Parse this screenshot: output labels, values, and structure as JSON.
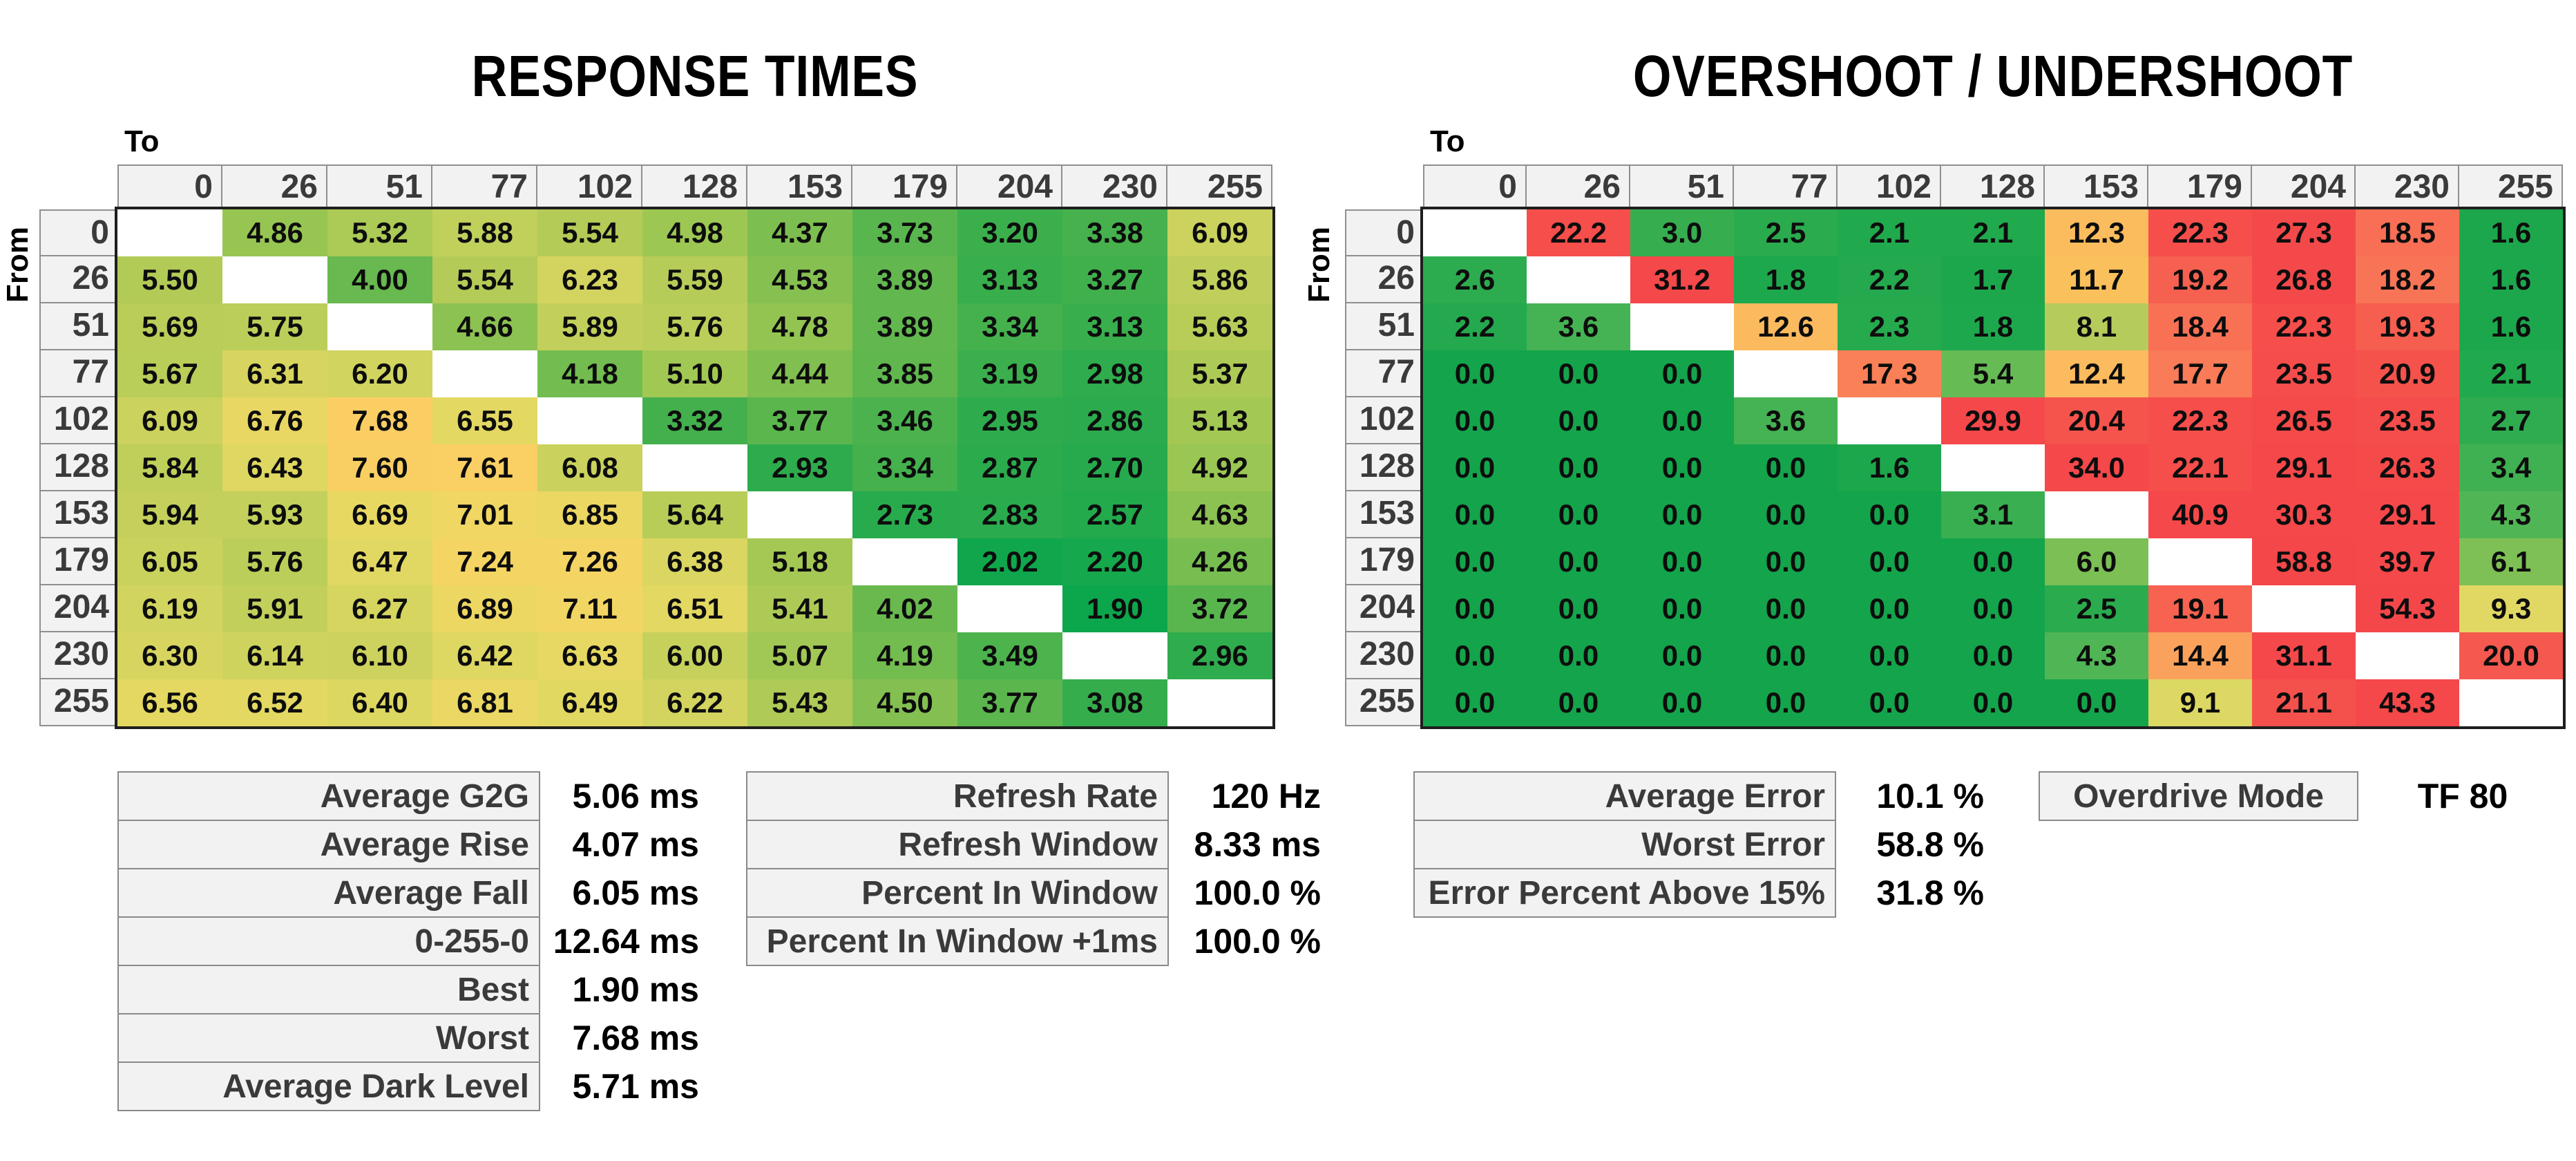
{
  "chart_data": [
    {
      "type": "heatmap",
      "name": "response-times",
      "title": "RESPONSE TIMES",
      "xlabel": "To",
      "ylabel": "From",
      "unit": "ms",
      "decimals": 2,
      "categories": [
        "0",
        "26",
        "51",
        "77",
        "102",
        "128",
        "153",
        "179",
        "204",
        "230",
        "255"
      ],
      "rows": [
        [
          null,
          4.86,
          5.32,
          5.88,
          5.54,
          4.98,
          4.37,
          3.73,
          3.2,
          3.38,
          6.09
        ],
        [
          5.5,
          null,
          4.0,
          5.54,
          6.23,
          5.59,
          4.53,
          3.89,
          3.13,
          3.27,
          5.86
        ],
        [
          5.69,
          5.75,
          null,
          4.66,
          5.89,
          5.76,
          4.78,
          3.89,
          3.34,
          3.13,
          5.63
        ],
        [
          5.67,
          6.31,
          6.2,
          null,
          4.18,
          5.1,
          4.44,
          3.85,
          3.19,
          2.98,
          5.37
        ],
        [
          6.09,
          6.76,
          7.68,
          6.55,
          null,
          3.32,
          3.77,
          3.46,
          2.95,
          2.86,
          5.13
        ],
        [
          5.84,
          6.43,
          7.6,
          7.61,
          6.08,
          null,
          2.93,
          3.34,
          2.87,
          2.7,
          4.92
        ],
        [
          5.94,
          5.93,
          6.69,
          7.01,
          6.85,
          5.64,
          null,
          2.73,
          2.83,
          2.57,
          4.63
        ],
        [
          6.05,
          5.76,
          6.47,
          7.24,
          7.26,
          6.38,
          5.18,
          null,
          2.02,
          2.2,
          4.26
        ],
        [
          6.19,
          5.91,
          6.27,
          6.89,
          7.11,
          6.51,
          5.41,
          4.02,
          null,
          1.9,
          3.72
        ],
        [
          6.3,
          6.14,
          6.1,
          6.42,
          6.63,
          6.0,
          5.07,
          4.19,
          3.49,
          null,
          2.96
        ],
        [
          6.56,
          6.52,
          6.4,
          6.81,
          6.49,
          6.22,
          5.43,
          4.5,
          3.77,
          3.08,
          null
        ]
      ],
      "colorscale": [
        [
          1.9,
          "#0ca64c"
        ],
        [
          3.0,
          "#30ac4d"
        ],
        [
          3.5,
          "#4db34d"
        ],
        [
          4.0,
          "#68b94f"
        ],
        [
          4.5,
          "#84c051"
        ],
        [
          5.0,
          "#9ec753"
        ],
        [
          5.5,
          "#b2cb57"
        ],
        [
          6.0,
          "#c6d15c"
        ],
        [
          6.5,
          "#e2d862"
        ],
        [
          7.0,
          "#f0d763"
        ],
        [
          7.7,
          "#fbce64"
        ]
      ],
      "blank_color": "#ffffff",
      "legend": "none",
      "grid": "off"
    },
    {
      "type": "heatmap",
      "name": "overshoot-undershoot",
      "title": "OVERSHOOT / UNDERSHOOT",
      "xlabel": "To",
      "ylabel": "From",
      "unit": "%",
      "decimals": 1,
      "categories": [
        "0",
        "26",
        "51",
        "77",
        "102",
        "128",
        "153",
        "179",
        "204",
        "230",
        "255"
      ],
      "rows": [
        [
          null,
          22.2,
          3.0,
          2.5,
          2.1,
          2.1,
          12.3,
          22.3,
          27.3,
          18.5,
          1.6
        ],
        [
          2.6,
          null,
          31.2,
          1.8,
          2.2,
          1.7,
          11.7,
          19.2,
          26.8,
          18.2,
          1.6
        ],
        [
          2.2,
          3.6,
          null,
          12.6,
          2.3,
          1.8,
          8.1,
          18.4,
          22.3,
          19.3,
          1.6
        ],
        [
          0.0,
          0.0,
          0.0,
          null,
          17.3,
          5.4,
          12.4,
          17.7,
          23.5,
          20.9,
          2.1
        ],
        [
          0.0,
          0.0,
          0.0,
          3.6,
          null,
          29.9,
          20.4,
          22.3,
          26.5,
          23.5,
          2.7
        ],
        [
          0.0,
          0.0,
          0.0,
          0.0,
          1.6,
          null,
          34.0,
          22.1,
          29.1,
          26.3,
          3.4
        ],
        [
          0.0,
          0.0,
          0.0,
          0.0,
          0.0,
          3.1,
          null,
          40.9,
          30.3,
          29.1,
          4.3
        ],
        [
          0.0,
          0.0,
          0.0,
          0.0,
          0.0,
          0.0,
          6.0,
          null,
          58.8,
          39.7,
          6.1
        ],
        [
          0.0,
          0.0,
          0.0,
          0.0,
          0.0,
          0.0,
          2.5,
          19.1,
          null,
          54.3,
          9.3
        ],
        [
          0.0,
          0.0,
          0.0,
          0.0,
          0.0,
          0.0,
          4.3,
          14.4,
          31.1,
          null,
          20.0
        ],
        [
          0.0,
          0.0,
          0.0,
          0.0,
          0.0,
          0.0,
          0.0,
          9.1,
          21.1,
          43.3,
          null
        ]
      ],
      "colorscale": [
        [
          0.0,
          "#14a44b"
        ],
        [
          2.0,
          "#1fa84d"
        ],
        [
          2.7,
          "#2fac4f"
        ],
        [
          3.6,
          "#45b253"
        ],
        [
          4.3,
          "#50b655"
        ],
        [
          5.4,
          "#66bb55"
        ],
        [
          6.1,
          "#7ec055"
        ],
        [
          8.1,
          "#b5cc5c"
        ],
        [
          9.2,
          "#e0d964"
        ],
        [
          11.7,
          "#f9c05c"
        ],
        [
          12.6,
          "#fbba5e"
        ],
        [
          14.4,
          "#faa25c"
        ],
        [
          17.5,
          "#f97e57"
        ],
        [
          18.5,
          "#f86f55"
        ],
        [
          19.3,
          "#f65e4f"
        ],
        [
          20.5,
          "#f5534d"
        ],
        [
          22.0,
          "#f54e4b"
        ],
        [
          28.0,
          "#f4484a"
        ],
        [
          60.0,
          "#f4474a"
        ]
      ],
      "blank_color": "#ffffff",
      "legend": "none",
      "grid": "off"
    },
    {
      "type": "table",
      "name": "response-summary",
      "rows": [
        {
          "label": "Average G2G",
          "value": "5.06",
          "unit": "ms"
        },
        {
          "label": "Average Rise",
          "value": "4.07",
          "unit": "ms"
        },
        {
          "label": "Average Fall",
          "value": "6.05",
          "unit": "ms"
        },
        {
          "label": "0-255-0",
          "value": "12.64",
          "unit": "ms"
        },
        {
          "label": "Best",
          "value": "1.90",
          "unit": "ms"
        },
        {
          "label": "Worst",
          "value": "7.68",
          "unit": "ms"
        },
        {
          "label": "Average Dark Level",
          "value": "5.71",
          "unit": "ms"
        }
      ]
    },
    {
      "type": "table",
      "name": "refresh-summary",
      "rows": [
        {
          "label": "Refresh Rate",
          "value": "120",
          "unit": "Hz"
        },
        {
          "label": "Refresh Window",
          "value": "8.33",
          "unit": "ms"
        },
        {
          "label": "Percent In Window",
          "value": "100.0",
          "unit": "%"
        },
        {
          "label": "Percent In Window +1ms",
          "value": "100.0",
          "unit": "%"
        }
      ]
    },
    {
      "type": "table",
      "name": "error-summary",
      "rows": [
        {
          "label": "Average Error",
          "value": "10.1",
          "unit": "%"
        },
        {
          "label": "Worst Error",
          "value": "58.8",
          "unit": "%"
        },
        {
          "label": "Error Percent Above 15%",
          "value": "31.8",
          "unit": "%"
        }
      ]
    },
    {
      "type": "table",
      "name": "overdrive-mode",
      "rows": [
        {
          "label": "Overdrive Mode",
          "value": "TF 80",
          "unit": ""
        }
      ]
    }
  ],
  "colors": {
    "header_bg": "#f2f2f2",
    "header_text": "#3a3a3a",
    "cell_text": "#0d0d0d",
    "grid_border": "#1e1e1e",
    "box_border": "#8a8a8a",
    "blank_cell": "#ffffff"
  }
}
